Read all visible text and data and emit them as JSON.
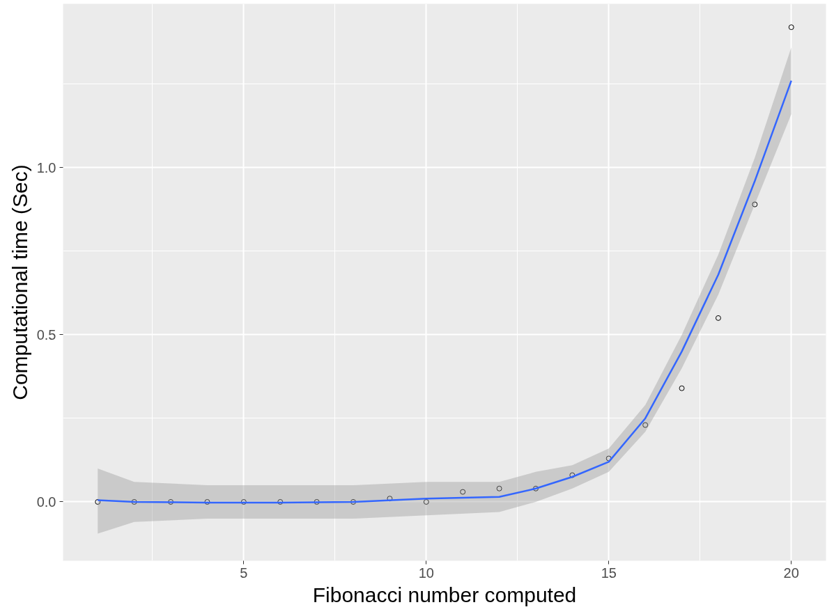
{
  "chart_data": {
    "type": "scatter",
    "xlabel": "Fibonacci number computed",
    "ylabel": "Computational time (Sec)",
    "xlim": [
      0.05,
      20.95
    ],
    "ylim": [
      -0.176,
      1.49
    ],
    "xticks": [
      5,
      10,
      15,
      20
    ],
    "yticks": [
      {
        "value": 0,
        "label": "0.0"
      },
      {
        "value": 0.5,
        "label": "0.5"
      },
      {
        "value": 1,
        "label": "1.0"
      }
    ],
    "grid": true,
    "series": [
      {
        "marker": "circle",
        "color": "#000000",
        "x": [
          1,
          2,
          3,
          4,
          5,
          6,
          7,
          8,
          9,
          10,
          11,
          12,
          13,
          14,
          15,
          16,
          17,
          18,
          19,
          20
        ],
        "values": [
          0,
          0,
          0,
          0,
          0,
          0,
          0,
          0,
          0.01,
          0,
          0.03,
          0.04,
          0.04,
          0.08,
          0.13,
          0.23,
          0.34,
          0.55,
          0.89,
          1.42
        ]
      },
      {
        "type": "line",
        "marker": "none",
        "color": "#3366ff",
        "x": [
          1,
          2,
          4,
          6,
          8,
          10,
          12,
          13,
          14,
          15,
          16,
          17,
          18,
          19,
          20
        ],
        "values": [
          0.005,
          0,
          -0.002,
          -0.002,
          0,
          0.01,
          0.015,
          0.04,
          0.075,
          0.12,
          0.25,
          0.45,
          0.68,
          0.96,
          1.26
        ],
        "lower": [
          -0.095,
          -0.06,
          -0.05,
          -0.05,
          -0.05,
          -0.04,
          -0.03,
          0.0,
          0.04,
          0.09,
          0.21,
          0.4,
          0.62,
          0.89,
          1.16
        ],
        "upper": [
          0.1,
          0.06,
          0.05,
          0.05,
          0.05,
          0.06,
          0.06,
          0.09,
          0.11,
          0.16,
          0.29,
          0.5,
          0.74,
          1.03,
          1.36
        ]
      }
    ]
  }
}
